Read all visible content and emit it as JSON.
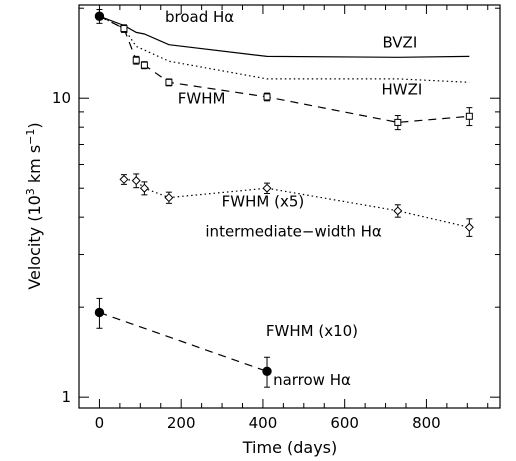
{
  "chart_data": {
    "type": "line",
    "xlabel": "Time (days)",
    "ylabel_main": "Velocity (10",
    "ylabel_sup1": "3",
    "ylabel_mid": " km s",
    "ylabel_sup2": "−1",
    "ylabel_end": ")",
    "xlim": [
      -50,
      980
    ],
    "ylim": [
      0.92,
      20.5
    ],
    "yscale": "log",
    "x_ticks": [
      0,
      200,
      400,
      600,
      800
    ],
    "x_tick_labels": [
      "0",
      "200",
      "400",
      "600",
      "800"
    ],
    "y_ticks": [
      1,
      10
    ],
    "y_tick_labels": [
      "1",
      "10"
    ],
    "annotations": [
      {
        "text": "broad Hα",
        "x": 245,
        "y": 18.0
      },
      {
        "text": "BVZI",
        "x": 735,
        "y": 14.8
      },
      {
        "text": "HWZI",
        "x": 740,
        "y": 10.3
      },
      {
        "text": "FWHM",
        "x": 250,
        "y": 9.6
      },
      {
        "text": "FWHM (x5)",
        "x": 400,
        "y": 4.35
      },
      {
        "text": "intermediate−width Hα",
        "x": 475,
        "y": 3.45
      },
      {
        "text": "FWHM (x10)",
        "x": 520,
        "y": 1.6
      },
      {
        "text": "narrow Hα",
        "x": 520,
        "y": 1.1
      }
    ],
    "series": [
      {
        "name": "BVZI",
        "style": "solid",
        "marker": "none",
        "x": [
          0,
          60,
          90,
          110,
          170,
          410,
          730,
          905
        ],
        "y": [
          18.8,
          17.5,
          16.6,
          16.4,
          15.1,
          13.8,
          13.7,
          13.8
        ]
      },
      {
        "name": "HWZI",
        "style": "dotted",
        "marker": "none",
        "x": [
          0,
          60,
          90,
          110,
          170,
          410,
          730,
          905
        ],
        "y": [
          18.8,
          17.1,
          14.9,
          14.5,
          13.3,
          11.6,
          11.6,
          11.3
        ]
      },
      {
        "name": "FWHM broad",
        "style": "dashed",
        "marker": "square",
        "x": [
          0,
          60,
          90,
          110,
          170,
          410,
          730,
          905
        ],
        "y": [
          18.8,
          17.1,
          13.4,
          12.9,
          11.3,
          10.1,
          8.3,
          8.7
        ],
        "yerr": [
          1.0,
          0.5,
          0.4,
          0.35,
          0.3,
          0.3,
          0.45,
          0.6
        ],
        "filled": [
          true,
          false,
          false,
          false,
          false,
          false,
          false,
          false
        ]
      },
      {
        "name": "FWHM (x5) intermediate-width",
        "style": "dotted",
        "marker": "diamond",
        "x": [
          60,
          90,
          110,
          170,
          410,
          730,
          905
        ],
        "y": [
          5.35,
          5.3,
          5.0,
          4.65,
          5.0,
          4.2,
          3.7
        ],
        "yerr": [
          0.2,
          0.28,
          0.25,
          0.2,
          0.2,
          0.2,
          0.25
        ]
      },
      {
        "name": "FWHM (x10) narrow",
        "style": "dashed",
        "marker": "circle",
        "x": [
          0,
          410
        ],
        "y": [
          1.92,
          1.22
        ],
        "yerr": [
          0.22,
          0.14
        ]
      }
    ]
  }
}
